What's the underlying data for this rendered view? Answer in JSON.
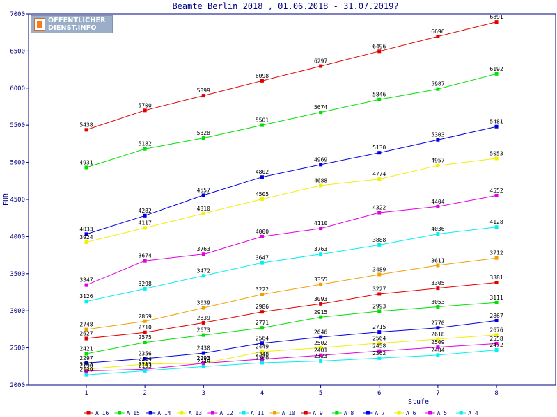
{
  "logo": {
    "line1": "OFFENTLICHER",
    "line2": "DIENST.INFO"
  },
  "chart_data": {
    "type": "line",
    "title": "Beamte Berlin 2018 , 01.06.2018 - 31.07.2019?",
    "xlabel": "Stufe",
    "ylabel": "EUR",
    "x": [
      1,
      2,
      3,
      4,
      5,
      6,
      7,
      8
    ],
    "ylim": [
      2000,
      7000
    ],
    "yticks": [
      2000,
      2500,
      3000,
      3500,
      4000,
      4500,
      5000,
      5500,
      6000,
      6500,
      7000
    ],
    "grid": false,
    "legend_position": "bottom",
    "series": [
      {
        "name": "A_16",
        "color": "#e00000",
        "values": [
          5438,
          5700,
          5899,
          6098,
          6297,
          6496,
          6696,
          6891
        ]
      },
      {
        "name": "A_15",
        "color": "#00e000",
        "values": [
          4931,
          5182,
          5328,
          5501,
          5674,
          5846,
          5987,
          6192
        ]
      },
      {
        "name": "A_14",
        "color": "#0000e0",
        "values": [
          4033,
          4282,
          4557,
          4802,
          4969,
          5130,
          5303,
          5481
        ]
      },
      {
        "name": "A_13",
        "color": "#f0f000",
        "values": [
          3924,
          4117,
          4310,
          4505,
          4688,
          4774,
          4957,
          5053
        ]
      },
      {
        "name": "A_12",
        "color": "#e000e0",
        "values": [
          3347,
          3674,
          3763,
          4000,
          4110,
          4322,
          4404,
          4552
        ]
      },
      {
        "name": "A_11",
        "color": "#00f0f0",
        "values": [
          3126,
          3298,
          3472,
          3647,
          3763,
          3888,
          4036,
          4128
        ]
      },
      {
        "name": "A_10",
        "color": "#f0a000",
        "values": [
          2748,
          2859,
          3039,
          3222,
          3355,
          3489,
          3611,
          3712
        ]
      },
      {
        "name": "A_9",
        "color": "#e00000",
        "values": [
          2627,
          2710,
          2839,
          2986,
          3093,
          3227,
          3305,
          3381
        ]
      },
      {
        "name": "A_8",
        "color": "#00e000",
        "values": [
          2421,
          2575,
          2673,
          2771,
          2915,
          2993,
          3053,
          3111
        ]
      },
      {
        "name": "A_7",
        "color": "#0000e0",
        "values": [
          2297,
          2356,
          2430,
          2564,
          2646,
          2715,
          2770,
          2867
        ]
      },
      {
        "name": "A_6",
        "color": "#f0f000",
        "values": [
          2213,
          2284,
          2293,
          2449,
          2502,
          2564,
          2618,
          2676
        ]
      },
      {
        "name": "A_5",
        "color": "#e000e0",
        "values": [
          2190,
          2213,
          2293,
          2348,
          2401,
          2458,
          2509,
          2558
        ]
      },
      {
        "name": "A_4",
        "color": "#00f0f0",
        "values": [
          2139,
          2193,
          2249,
          2300,
          2323,
          2362,
          2404,
          2472
        ]
      }
    ]
  }
}
